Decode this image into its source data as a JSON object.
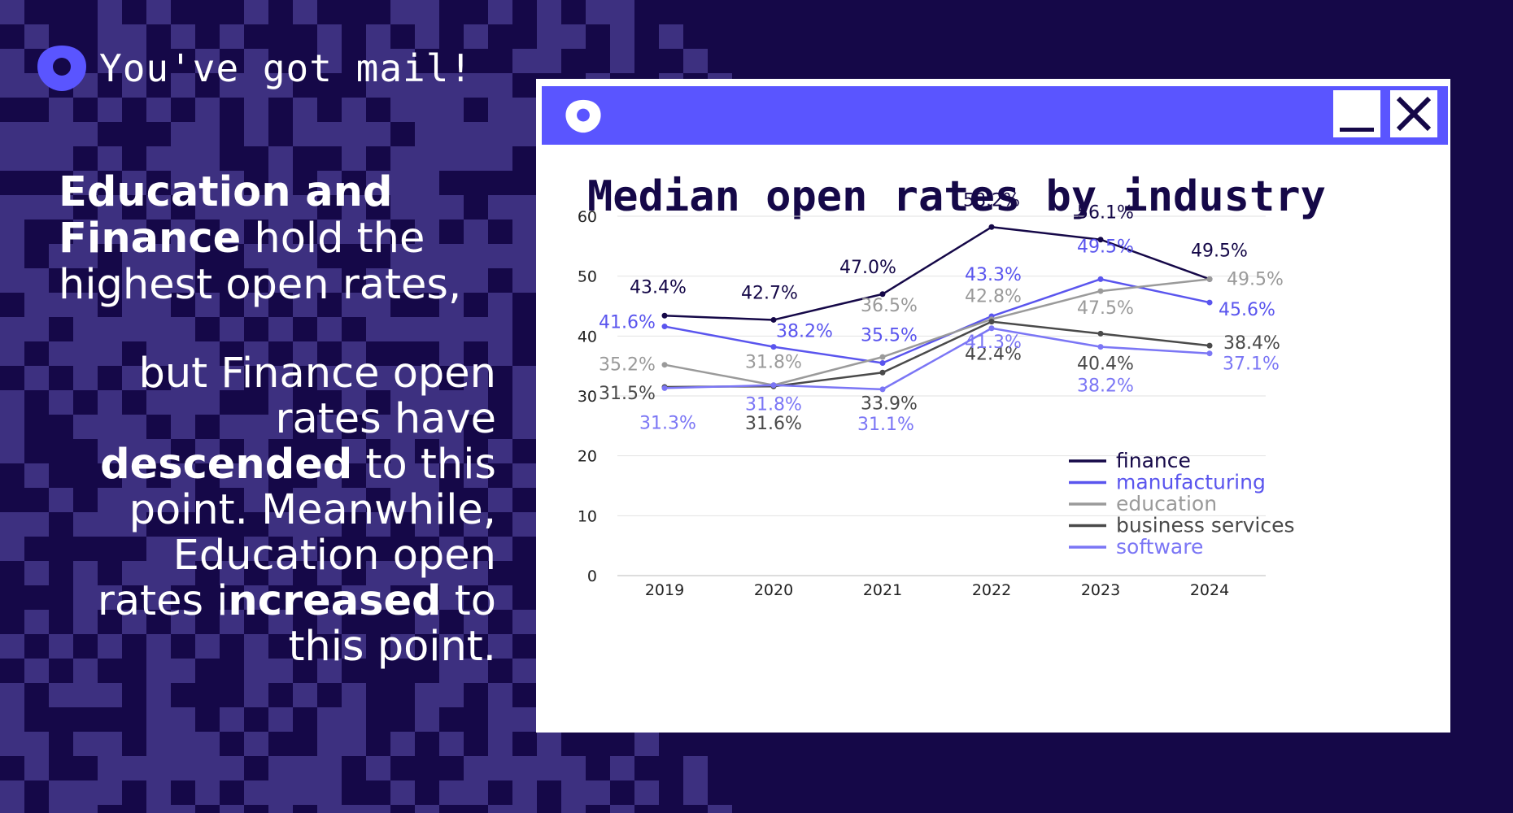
{
  "brand": {
    "tagline": "You've got mail!"
  },
  "headline": {
    "bold1": "Education and",
    "bold2": "Finance",
    "rest1": " hold the",
    "rest2": "highest open rates,"
  },
  "body": {
    "p1": "but Finance open rates have ",
    "b1": "descended",
    "p2": " to this point. Meanwhile, Education open rates i",
    "b2": "ncreased",
    "p3": " to this point."
  },
  "window": {
    "minimize_label": "Minimize",
    "close_label": "Close"
  },
  "colors": {
    "background": "#150848",
    "pattern": "#3d3080",
    "accent": "#5a55ff",
    "finance": "#150848",
    "manufacturing": "#5a55ee",
    "education": "#9a9a9a",
    "business_services": "#4a4a4a",
    "software": "#7b76f5"
  },
  "chart_data": {
    "type": "line",
    "title": "Median open rates by industry",
    "xlabel": "",
    "ylabel": "",
    "categories": [
      "2019",
      "2020",
      "2021",
      "2022",
      "2023",
      "2024"
    ],
    "ylim": [
      0,
      60
    ],
    "yticks": [
      0,
      10,
      20,
      30,
      40,
      50,
      60
    ],
    "grid": true,
    "legend_position": "bottom-right",
    "series": [
      {
        "name": "finance",
        "color": "#150848",
        "values": [
          43.4,
          42.7,
          47.0,
          58.2,
          56.1,
          49.5
        ],
        "labels": [
          "43.4%",
          "42.7%",
          "47.0%",
          "58.2%",
          "56.1%",
          "49.5%"
        ]
      },
      {
        "name": "manufacturing",
        "color": "#5a55ee",
        "values": [
          41.6,
          38.2,
          35.5,
          43.3,
          49.5,
          45.6
        ],
        "labels": [
          "41.6%",
          "38.2%",
          "35.5%",
          "43.3%",
          "49.5%",
          "45.6%"
        ]
      },
      {
        "name": "education",
        "color": "#9a9a9a",
        "values": [
          35.2,
          31.8,
          36.5,
          42.8,
          47.5,
          49.5
        ],
        "labels": [
          "35.2%",
          "31.8%",
          "36.5%",
          "42.8%",
          "47.5%",
          "49.5%"
        ]
      },
      {
        "name": "business services",
        "color": "#4a4a4a",
        "values": [
          31.5,
          31.6,
          33.9,
          42.4,
          40.4,
          38.4
        ],
        "labels": [
          "31.5%",
          "31.6%",
          "33.9%",
          "42.4%",
          "40.4%",
          "38.4%"
        ]
      },
      {
        "name": "software",
        "color": "#7b76f5",
        "values": [
          31.3,
          31.8,
          31.1,
          41.3,
          38.2,
          37.1
        ],
        "labels": [
          "31.3%",
          "31.8%",
          "31.1%",
          "41.3%",
          "38.2%",
          "37.1%"
        ]
      }
    ]
  }
}
